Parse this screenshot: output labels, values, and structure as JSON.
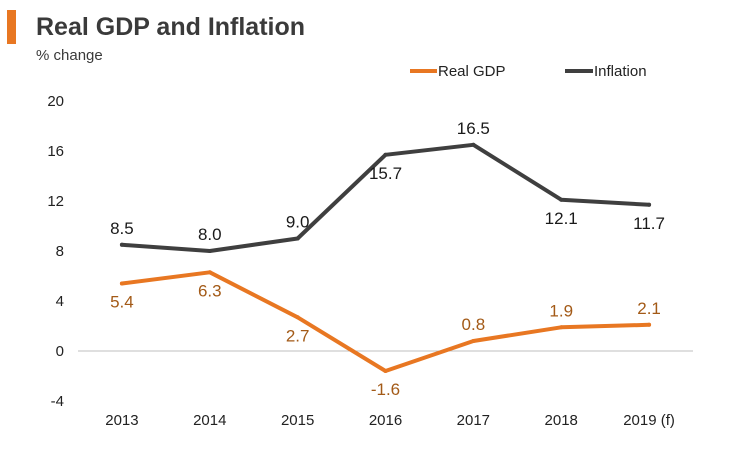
{
  "header": {
    "title": "Real GDP and Inflation",
    "subtitle": "% change"
  },
  "colors": {
    "accent": "#e87722",
    "gdp": "#e87722",
    "gdp_label": "#a35a17",
    "inflation": "#3f3f3f",
    "axis": "#bfbfbf"
  },
  "chart_data": {
    "type": "line",
    "title": "Real GDP and Inflation",
    "ylabel": "% change",
    "xlabel": "",
    "categories": [
      "2013",
      "2014",
      "2015",
      "2016",
      "2017",
      "2018",
      "2019 (f)"
    ],
    "ylim": [
      -4,
      20
    ],
    "yticks": [
      "20",
      "16",
      "12",
      "8",
      "4",
      "0",
      "-4"
    ],
    "ytick_values": [
      20,
      16,
      12,
      8,
      4,
      0,
      -4
    ],
    "legend_position": "top-right",
    "series": [
      {
        "name": "Real GDP",
        "values": [
          5.4,
          6.3,
          2.7,
          -1.6,
          0.8,
          1.9,
          2.1
        ],
        "labels": [
          "5.4",
          "6.3",
          "2.7",
          "-1.6",
          "0.8",
          "1.9",
          "2.1"
        ],
        "label_pos": [
          "below",
          "below",
          "below",
          "below",
          "above",
          "above",
          "above"
        ]
      },
      {
        "name": "Inflation",
        "values": [
          8.5,
          8.0,
          9.0,
          15.7,
          16.5,
          12.1,
          11.7
        ],
        "labels": [
          "8.5",
          "8.0",
          "9.0",
          "15.7",
          "16.5",
          "12.1",
          "11.7"
        ],
        "label_pos": [
          "above",
          "above",
          "above",
          "below",
          "above",
          "below",
          "below"
        ]
      }
    ]
  }
}
